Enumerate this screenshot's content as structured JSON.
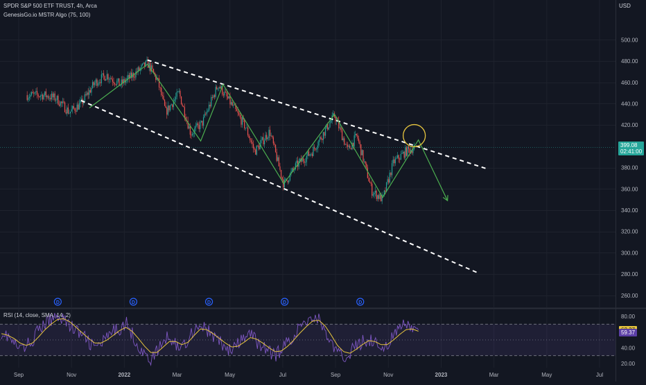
{
  "header": {
    "title": "SPDR S&P 500 ETF TRUST, 4h, Arca",
    "indicator": "GenesisGo.io MSTR Algo (75, 100)",
    "currency": "USD"
  },
  "price_tag": {
    "value": "399.08",
    "countdown": "02:41:00",
    "color": "#26a69a"
  },
  "rsi_header": "RSI (14, close, SMA, 14, 2)",
  "rsi_tags": {
    "rsi": "62.37",
    "sma": "59.37",
    "rsi_color": "#e7c53f",
    "sma_color": "#5b3fa6"
  },
  "dividend_marker": "D",
  "colors": {
    "background": "#131722",
    "up": "#26a69a",
    "down": "#ef5350",
    "algo": "#4caf50",
    "channel": "#ffffff",
    "circle": "#e7c53f",
    "rsi": "#7e57c2",
    "rsi_sma": "#e7c53f",
    "dividend": "#2962ff"
  },
  "chart_data": [
    {
      "type": "candlestick",
      "title": "SPDR S&P 500 ETF TRUST, 4h, Arca",
      "y_axis_ticks": [
        "500.00",
        "480.00",
        "460.00",
        "440.00",
        "420.00",
        "380.00",
        "360.00",
        "340.00",
        "320.00",
        "300.00",
        "280.00",
        "260.00"
      ],
      "ylim": [
        252,
        508
      ],
      "x_axis_ticks": [
        "Sep",
        "Nov",
        "2022",
        "Mar",
        "May",
        "Jul",
        "Sep",
        "Nov",
        "2023",
        "Mar",
        "May",
        "Jul"
      ],
      "price_path": [
        [
          "2021-09-01",
          448
        ],
        [
          "2021-09-15",
          445
        ],
        [
          "2021-10-01",
          432
        ],
        [
          "2021-10-15",
          440
        ],
        [
          "2021-11-01",
          460
        ],
        [
          "2021-11-15",
          467
        ],
        [
          "2021-12-01",
          458
        ],
        [
          "2021-12-15",
          466
        ],
        [
          "2022-01-03",
          478
        ],
        [
          "2022-01-15",
          462
        ],
        [
          "2022-01-25",
          432
        ],
        [
          "2022-02-10",
          450
        ],
        [
          "2022-02-24",
          412
        ],
        [
          "2022-03-10",
          422
        ],
        [
          "2022-03-29",
          458
        ],
        [
          "2022-04-15",
          438
        ],
        [
          "2022-05-01",
          418
        ],
        [
          "2022-05-12",
          395
        ],
        [
          "2022-05-30",
          414
        ],
        [
          "2022-06-16",
          364
        ],
        [
          "2022-07-01",
          382
        ],
        [
          "2022-07-20",
          395
        ],
        [
          "2022-08-16",
          429
        ],
        [
          "2022-09-01",
          396
        ],
        [
          "2022-09-12",
          410
        ],
        [
          "2022-09-30",
          358
        ],
        [
          "2022-10-13",
          350
        ],
        [
          "2022-10-26",
          385
        ],
        [
          "2022-11-10",
          395
        ],
        [
          "2022-11-20",
          399
        ]
      ],
      "last_price": 399.08,
      "algo_line": [
        [
          "2021-10-25",
          436
        ],
        [
          "2022-01-03",
          477
        ],
        [
          "2022-03-08",
          405
        ],
        [
          "2022-04-04",
          458
        ],
        [
          "2022-06-16",
          365
        ],
        [
          "2022-08-16",
          430
        ],
        [
          "2022-10-13",
          352
        ],
        [
          "2022-11-25",
          406
        ],
        [
          "2022-12-30",
          349
        ]
      ],
      "channel_upper": [
        [
          "2022-01-03",
          481
        ],
        [
          "2023-02-15",
          379
        ]
      ],
      "channel_lower": [
        [
          "2021-10-15",
          443
        ],
        [
          "2023-02-05",
          281
        ]
      ],
      "circle_center": [
        "2022-11-20",
        410
      ],
      "dividend_dates": [
        "2021-09-17",
        "2021-12-17",
        "2022-03-18",
        "2022-06-17",
        "2022-09-16"
      ]
    },
    {
      "type": "line",
      "title": "RSI (14, close, SMA, 14, 2)",
      "y_axis_ticks": [
        "80.00",
        "40.00",
        "20.00"
      ],
      "ylim": [
        16,
        88
      ],
      "bands": [
        70,
        50,
        30
      ],
      "series": [
        {
          "values": [
            60,
            55,
            45,
            38,
            42,
            50,
            62,
            70,
            75,
            82,
            78,
            68,
            62,
            55,
            48,
            40,
            45,
            52,
            60,
            65,
            72,
            58,
            42,
            30,
            25,
            35,
            48,
            55,
            45,
            40,
            52,
            64,
            70,
            62,
            55,
            48,
            40,
            36,
            44,
            52,
            58,
            48,
            42,
            35,
            30,
            38,
            48,
            56,
            66,
            74,
            80,
            76,
            62,
            45,
            32,
            28,
            34,
            42,
            48,
            52,
            46,
            40,
            45,
            55,
            64,
            70,
            66,
            58
          ]
        },
        {
          "values": [
            58,
            56,
            52,
            46,
            43,
            46,
            54,
            63,
            70,
            76,
            77,
            73,
            66,
            59,
            52,
            46,
            46,
            50,
            56,
            62,
            66,
            61,
            52,
            42,
            34,
            34,
            41,
            48,
            48,
            44,
            47,
            56,
            64,
            63,
            58,
            52,
            46,
            41,
            42,
            47,
            53,
            51,
            46,
            40,
            35,
            36,
            42,
            50,
            59,
            67,
            74,
            75,
            68,
            56,
            43,
            35,
            33,
            38,
            44,
            49,
            48,
            44,
            44,
            50,
            57,
            63,
            64,
            61
          ]
        }
      ]
    }
  ]
}
